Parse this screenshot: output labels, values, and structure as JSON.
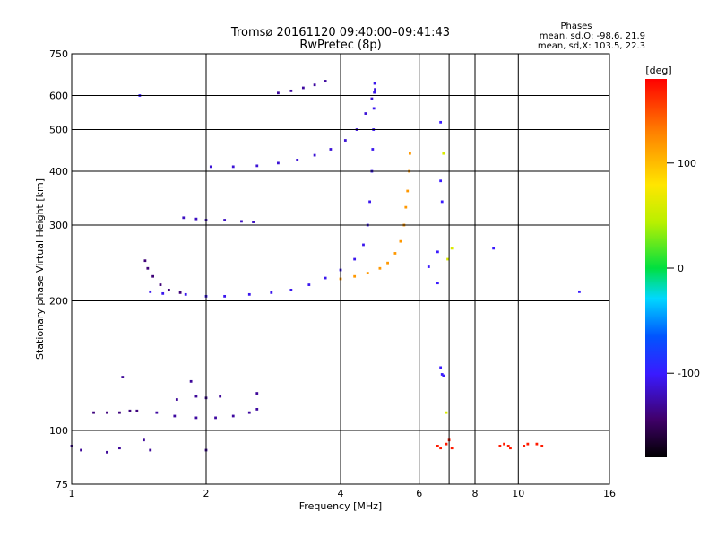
{
  "chart_data": {
    "type": "scatter",
    "title": "Tromsø 20161120 09:40:00–09:41:43",
    "subtitle": "RwPretec (8p)",
    "xlabel": "Frequency [MHz]",
    "ylabel": "Stationary phase Virtual Height [km]",
    "x_scale": "log",
    "y_scale": "log",
    "xlim": [
      1,
      16
    ],
    "ylim": [
      75,
      750
    ],
    "x_ticks": [
      "1",
      "2",
      "4",
      "6",
      "8",
      "10",
      "16"
    ],
    "x_tick_values": [
      1,
      2,
      4,
      6,
      8,
      10,
      16
    ],
    "x_grid_values": [
      1,
      2,
      4,
      6,
      7,
      8,
      10,
      16
    ],
    "y_ticks": [
      "75",
      "100",
      "200",
      "300",
      "400",
      "500",
      "600",
      "750"
    ],
    "y_tick_values": [
      75,
      100,
      200,
      300,
      400,
      500,
      600,
      750
    ],
    "grid": true,
    "legend": {
      "title": "Phases",
      "lines": [
        "mean, sd,O: -98.6, 21.9",
        "mean, sd,X: 103.5, 22.3"
      ],
      "placement": "top-right"
    },
    "colorbar": {
      "label": "[deg]",
      "ticks": [
        "100",
        "0",
        "-100"
      ],
      "tick_values": [
        100,
        0,
        -100
      ],
      "range": [
        -180,
        180
      ],
      "placement": "right"
    },
    "series": [
      {
        "color_phase": -105,
        "points": [
          [
            1.5,
            210
          ],
          [
            1.6,
            208
          ],
          [
            1.8,
            207
          ],
          [
            2.0,
            205
          ],
          [
            2.2,
            205
          ],
          [
            2.5,
            207
          ],
          [
            2.8,
            209
          ],
          [
            3.1,
            212
          ],
          [
            3.4,
            218
          ],
          [
            3.7,
            226
          ],
          [
            4.0,
            236
          ],
          [
            4.3,
            250
          ],
          [
            4.5,
            270
          ],
          [
            4.6,
            300
          ],
          [
            4.65,
            340
          ],
          [
            4.7,
            400
          ],
          [
            4.72,
            450
          ],
          [
            4.74,
            500
          ],
          [
            4.75,
            560
          ],
          [
            4.76,
            610
          ],
          [
            4.77,
            640
          ]
        ]
      },
      {
        "color_phase": -140,
        "points": [
          [
            1.46,
            248
          ],
          [
            1.48,
            238
          ],
          [
            1.52,
            228
          ],
          [
            1.58,
            218
          ],
          [
            1.65,
            212
          ],
          [
            1.75,
            209
          ]
        ]
      },
      {
        "color_phase": -112,
        "points": [
          [
            2.05,
            410
          ],
          [
            2.3,
            410
          ],
          [
            2.6,
            412
          ],
          [
            2.9,
            418
          ],
          [
            3.2,
            425
          ],
          [
            3.5,
            436
          ],
          [
            3.8,
            450
          ],
          [
            4.1,
            472
          ],
          [
            4.35,
            500
          ],
          [
            4.55,
            545
          ],
          [
            4.7,
            590
          ],
          [
            4.78,
            620
          ]
        ]
      },
      {
        "color_phase": -128,
        "points": [
          [
            2.9,
            608
          ],
          [
            3.1,
            615
          ],
          [
            3.3,
            625
          ],
          [
            3.5,
            635
          ],
          [
            3.7,
            648
          ]
        ]
      },
      {
        "color_phase": -118,
        "points": [
          [
            1.78,
            312
          ],
          [
            1.9,
            310
          ],
          [
            2.0,
            308
          ],
          [
            2.2,
            308
          ],
          [
            2.4,
            306
          ],
          [
            2.55,
            305
          ]
        ]
      },
      {
        "color_phase": 118,
        "points": [
          [
            4.0,
            225
          ],
          [
            4.3,
            228
          ],
          [
            4.6,
            232
          ],
          [
            4.9,
            238
          ],
          [
            5.1,
            245
          ],
          [
            5.3,
            258
          ],
          [
            5.45,
            275
          ],
          [
            5.55,
            300
          ],
          [
            5.6,
            330
          ],
          [
            5.65,
            360
          ],
          [
            5.7,
            400
          ],
          [
            5.72,
            440
          ]
        ]
      },
      {
        "color_phase": -128,
        "points": [
          [
            1.55,
            110
          ],
          [
            1.7,
            108
          ],
          [
            1.9,
            107
          ],
          [
            2.1,
            107
          ],
          [
            2.3,
            108
          ],
          [
            2.5,
            110
          ],
          [
            2.6,
            112
          ]
        ]
      },
      {
        "color_phase": -138,
        "points": [
          [
            1.12,
            110
          ],
          [
            1.2,
            110
          ],
          [
            1.28,
            110
          ],
          [
            1.35,
            111
          ],
          [
            1.4,
            111
          ]
        ]
      },
      {
        "color_phase": -130,
        "points": [
          [
            1.0,
            92
          ],
          [
            1.05,
            90
          ],
          [
            1.2,
            89
          ],
          [
            1.28,
            91
          ],
          [
            1.45,
            95
          ],
          [
            1.5,
            90
          ],
          [
            2.0,
            90
          ],
          [
            1.72,
            118
          ],
          [
            1.9,
            120
          ],
          [
            2.0,
            119
          ],
          [
            2.15,
            120
          ],
          [
            2.6,
            122
          ],
          [
            1.85,
            130
          ],
          [
            1.3,
            133
          ]
        ]
      },
      {
        "color_phase": 170,
        "points": [
          [
            6.6,
            92
          ],
          [
            6.7,
            91
          ],
          [
            6.9,
            93
          ],
          [
            7.0,
            95
          ],
          [
            7.1,
            91
          ],
          [
            9.1,
            92
          ],
          [
            9.3,
            93
          ],
          [
            9.5,
            92
          ],
          [
            9.6,
            91
          ],
          [
            10.3,
            92
          ],
          [
            10.5,
            93
          ],
          [
            11.0,
            93
          ],
          [
            11.3,
            92
          ]
        ]
      },
      {
        "color_phase": -100,
        "points": [
          [
            6.75,
            135
          ],
          [
            6.8,
            134
          ],
          [
            6.7,
            140
          ],
          [
            6.6,
            260
          ],
          [
            6.7,
            520
          ],
          [
            6.7,
            380
          ],
          [
            6.75,
            340
          ],
          [
            8.8,
            265
          ],
          [
            13.7,
            210
          ],
          [
            1.42,
            600
          ],
          [
            6.3,
            240
          ],
          [
            6.6,
            220
          ]
        ]
      },
      {
        "color_phase": 60,
        "points": [
          [
            6.8,
            440
          ],
          [
            7.1,
            265
          ],
          [
            6.95,
            250
          ],
          [
            6.9,
            110
          ]
        ]
      }
    ]
  }
}
